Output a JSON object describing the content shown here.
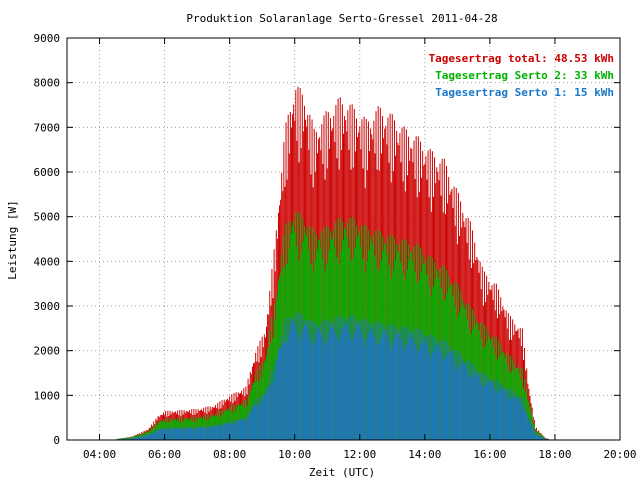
{
  "chart_data": {
    "type": "bar",
    "title": "Produktion Solaranlage Serto-Gressel 2011-04-28",
    "xlabel": "Zeit (UTC)",
    "ylabel": "Leistung [W]",
    "xlim": [
      3.0,
      20.0
    ],
    "ylim": [
      0,
      9000
    ],
    "grid": true,
    "legend_position": "top-right",
    "x_ticks": [
      "04:00",
      "06:00",
      "08:00",
      "10:00",
      "12:00",
      "14:00",
      "16:00",
      "18:00",
      "20:00"
    ],
    "x_tick_values": [
      4,
      6,
      8,
      10,
      12,
      14,
      16,
      18,
      20
    ],
    "y_ticks": [
      "0",
      "1000",
      "2000",
      "3000",
      "4000",
      "5000",
      "6000",
      "7000",
      "8000",
      "9000"
    ],
    "y_tick_values": [
      0,
      1000,
      2000,
      3000,
      4000,
      5000,
      6000,
      7000,
      8000,
      9000
    ],
    "legend": [
      {
        "label": "Tagesertrag total: 48.53 kWh",
        "color": "#cc0000"
      },
      {
        "label": "Tagesertrag Serto 2: 33 kWh",
        "color": "#00b000"
      },
      {
        "label": "Tagesertrag Serto 1: 15 kWh",
        "color": "#1a78c8"
      }
    ],
    "series_shape": [
      {
        "name": "total",
        "color": "#cc0000",
        "points": [
          [
            4.5,
            20
          ],
          [
            5.0,
            80
          ],
          [
            5.5,
            250
          ],
          [
            5.8,
            550
          ],
          [
            6.0,
            650
          ],
          [
            7.0,
            700
          ],
          [
            7.5,
            780
          ],
          [
            8.0,
            1000
          ],
          [
            8.5,
            1200
          ],
          [
            8.8,
            2000
          ],
          [
            9.1,
            2500
          ],
          [
            9.4,
            4500
          ],
          [
            9.7,
            7000
          ],
          [
            10.0,
            8000
          ],
          [
            10.3,
            7800
          ],
          [
            10.6,
            7000
          ],
          [
            11.0,
            7400
          ],
          [
            11.4,
            7700
          ],
          [
            11.8,
            7500
          ],
          [
            12.2,
            7200
          ],
          [
            12.6,
            7500
          ],
          [
            13.0,
            7300
          ],
          [
            13.4,
            7000
          ],
          [
            13.8,
            6800
          ],
          [
            14.2,
            6500
          ],
          [
            14.6,
            6300
          ],
          [
            15.0,
            5600
          ],
          [
            15.4,
            4900
          ],
          [
            15.8,
            3800
          ],
          [
            16.2,
            3500
          ],
          [
            16.6,
            2800
          ],
          [
            17.0,
            2500
          ],
          [
            17.2,
            1200
          ],
          [
            17.4,
            300
          ],
          [
            17.7,
            50
          ],
          [
            17.9,
            0
          ]
        ]
      },
      {
        "name": "Serto 2",
        "color": "#00b000",
        "points": [
          [
            4.5,
            20
          ],
          [
            5.0,
            70
          ],
          [
            5.5,
            200
          ],
          [
            5.8,
            420
          ],
          [
            6.0,
            480
          ],
          [
            7.0,
            520
          ],
          [
            7.5,
            580
          ],
          [
            8.0,
            750
          ],
          [
            8.5,
            900
          ],
          [
            8.8,
            1500
          ],
          [
            9.1,
            1900
          ],
          [
            9.4,
            3200
          ],
          [
            9.7,
            4800
          ],
          [
            10.0,
            5200
          ],
          [
            10.3,
            5000
          ],
          [
            10.6,
            4700
          ],
          [
            11.0,
            4800
          ],
          [
            11.4,
            5000
          ],
          [
            11.8,
            5000
          ],
          [
            12.2,
            4800
          ],
          [
            12.6,
            4700
          ],
          [
            13.0,
            4600
          ],
          [
            13.4,
            4500
          ],
          [
            13.8,
            4400
          ],
          [
            14.2,
            4100
          ],
          [
            14.6,
            3900
          ],
          [
            15.0,
            3500
          ],
          [
            15.4,
            3000
          ],
          [
            15.8,
            2600
          ],
          [
            16.2,
            2300
          ],
          [
            16.6,
            1900
          ],
          [
            17.0,
            1600
          ],
          [
            17.2,
            900
          ],
          [
            17.4,
            250
          ],
          [
            17.7,
            40
          ],
          [
            17.9,
            0
          ]
        ]
      },
      {
        "name": "Serto 1",
        "color": "#1a78c8",
        "points": [
          [
            4.5,
            10
          ],
          [
            5.0,
            40
          ],
          [
            5.5,
            120
          ],
          [
            5.8,
            250
          ],
          [
            6.0,
            280
          ],
          [
            7.0,
            300
          ],
          [
            7.5,
            330
          ],
          [
            8.0,
            420
          ],
          [
            8.5,
            520
          ],
          [
            8.8,
            900
          ],
          [
            9.1,
            1100
          ],
          [
            9.4,
            1800
          ],
          [
            9.7,
            2700
          ],
          [
            10.0,
            2900
          ],
          [
            10.3,
            2800
          ],
          [
            10.6,
            2650
          ],
          [
            11.0,
            2700
          ],
          [
            11.4,
            2800
          ],
          [
            11.8,
            2800
          ],
          [
            12.2,
            2700
          ],
          [
            12.6,
            2650
          ],
          [
            13.0,
            2600
          ],
          [
            13.4,
            2550
          ],
          [
            13.8,
            2500
          ],
          [
            14.2,
            2350
          ],
          [
            14.6,
            2250
          ],
          [
            15.0,
            2000
          ],
          [
            15.4,
            1750
          ],
          [
            15.8,
            1500
          ],
          [
            16.2,
            1350
          ],
          [
            16.6,
            1150
          ],
          [
            17.0,
            950
          ],
          [
            17.2,
            500
          ],
          [
            17.4,
            150
          ],
          [
            17.7,
            30
          ],
          [
            17.9,
            0
          ]
        ]
      }
    ]
  }
}
